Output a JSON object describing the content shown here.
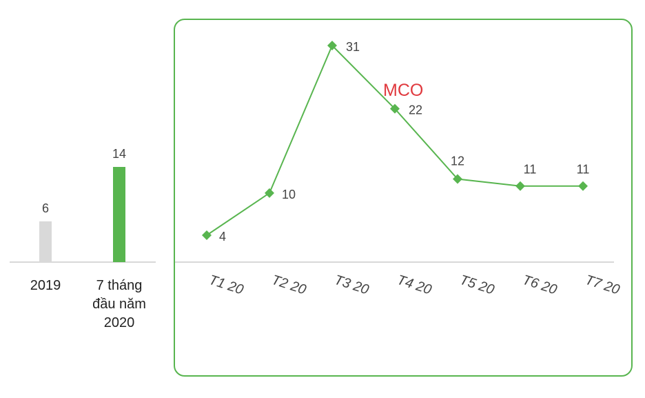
{
  "colors": {
    "accent_green": "#58b54f",
    "bar_grey": "#d9d9d9",
    "axis": "#cccccc",
    "annotation_red": "#e0393e"
  },
  "chart_data": [
    {
      "type": "bar",
      "categories": [
        "2019",
        "7 tháng\nđầu năm\n2020"
      ],
      "values": [
        6,
        14
      ],
      "data_labels": [
        "6",
        "14"
      ],
      "bar_colors": [
        "#d9d9d9",
        "#58b54f"
      ],
      "ylim": [
        0,
        14
      ]
    },
    {
      "type": "line",
      "categories": [
        "T1 20",
        "T2 20",
        "T3 20",
        "T4 20",
        "T5 20",
        "T6 20",
        "T7 20"
      ],
      "series": [
        {
          "values": [
            4,
            10,
            31,
            22,
            12,
            11,
            11
          ],
          "color": "#58b54f",
          "marker": "diamond"
        }
      ],
      "data_labels": [
        "4",
        "10",
        "31",
        "22",
        "12",
        "11",
        "11"
      ],
      "annotation": {
        "text": "MCO",
        "color": "#e0393e"
      },
      "ylim": [
        0,
        31
      ],
      "grid": false
    }
  ]
}
